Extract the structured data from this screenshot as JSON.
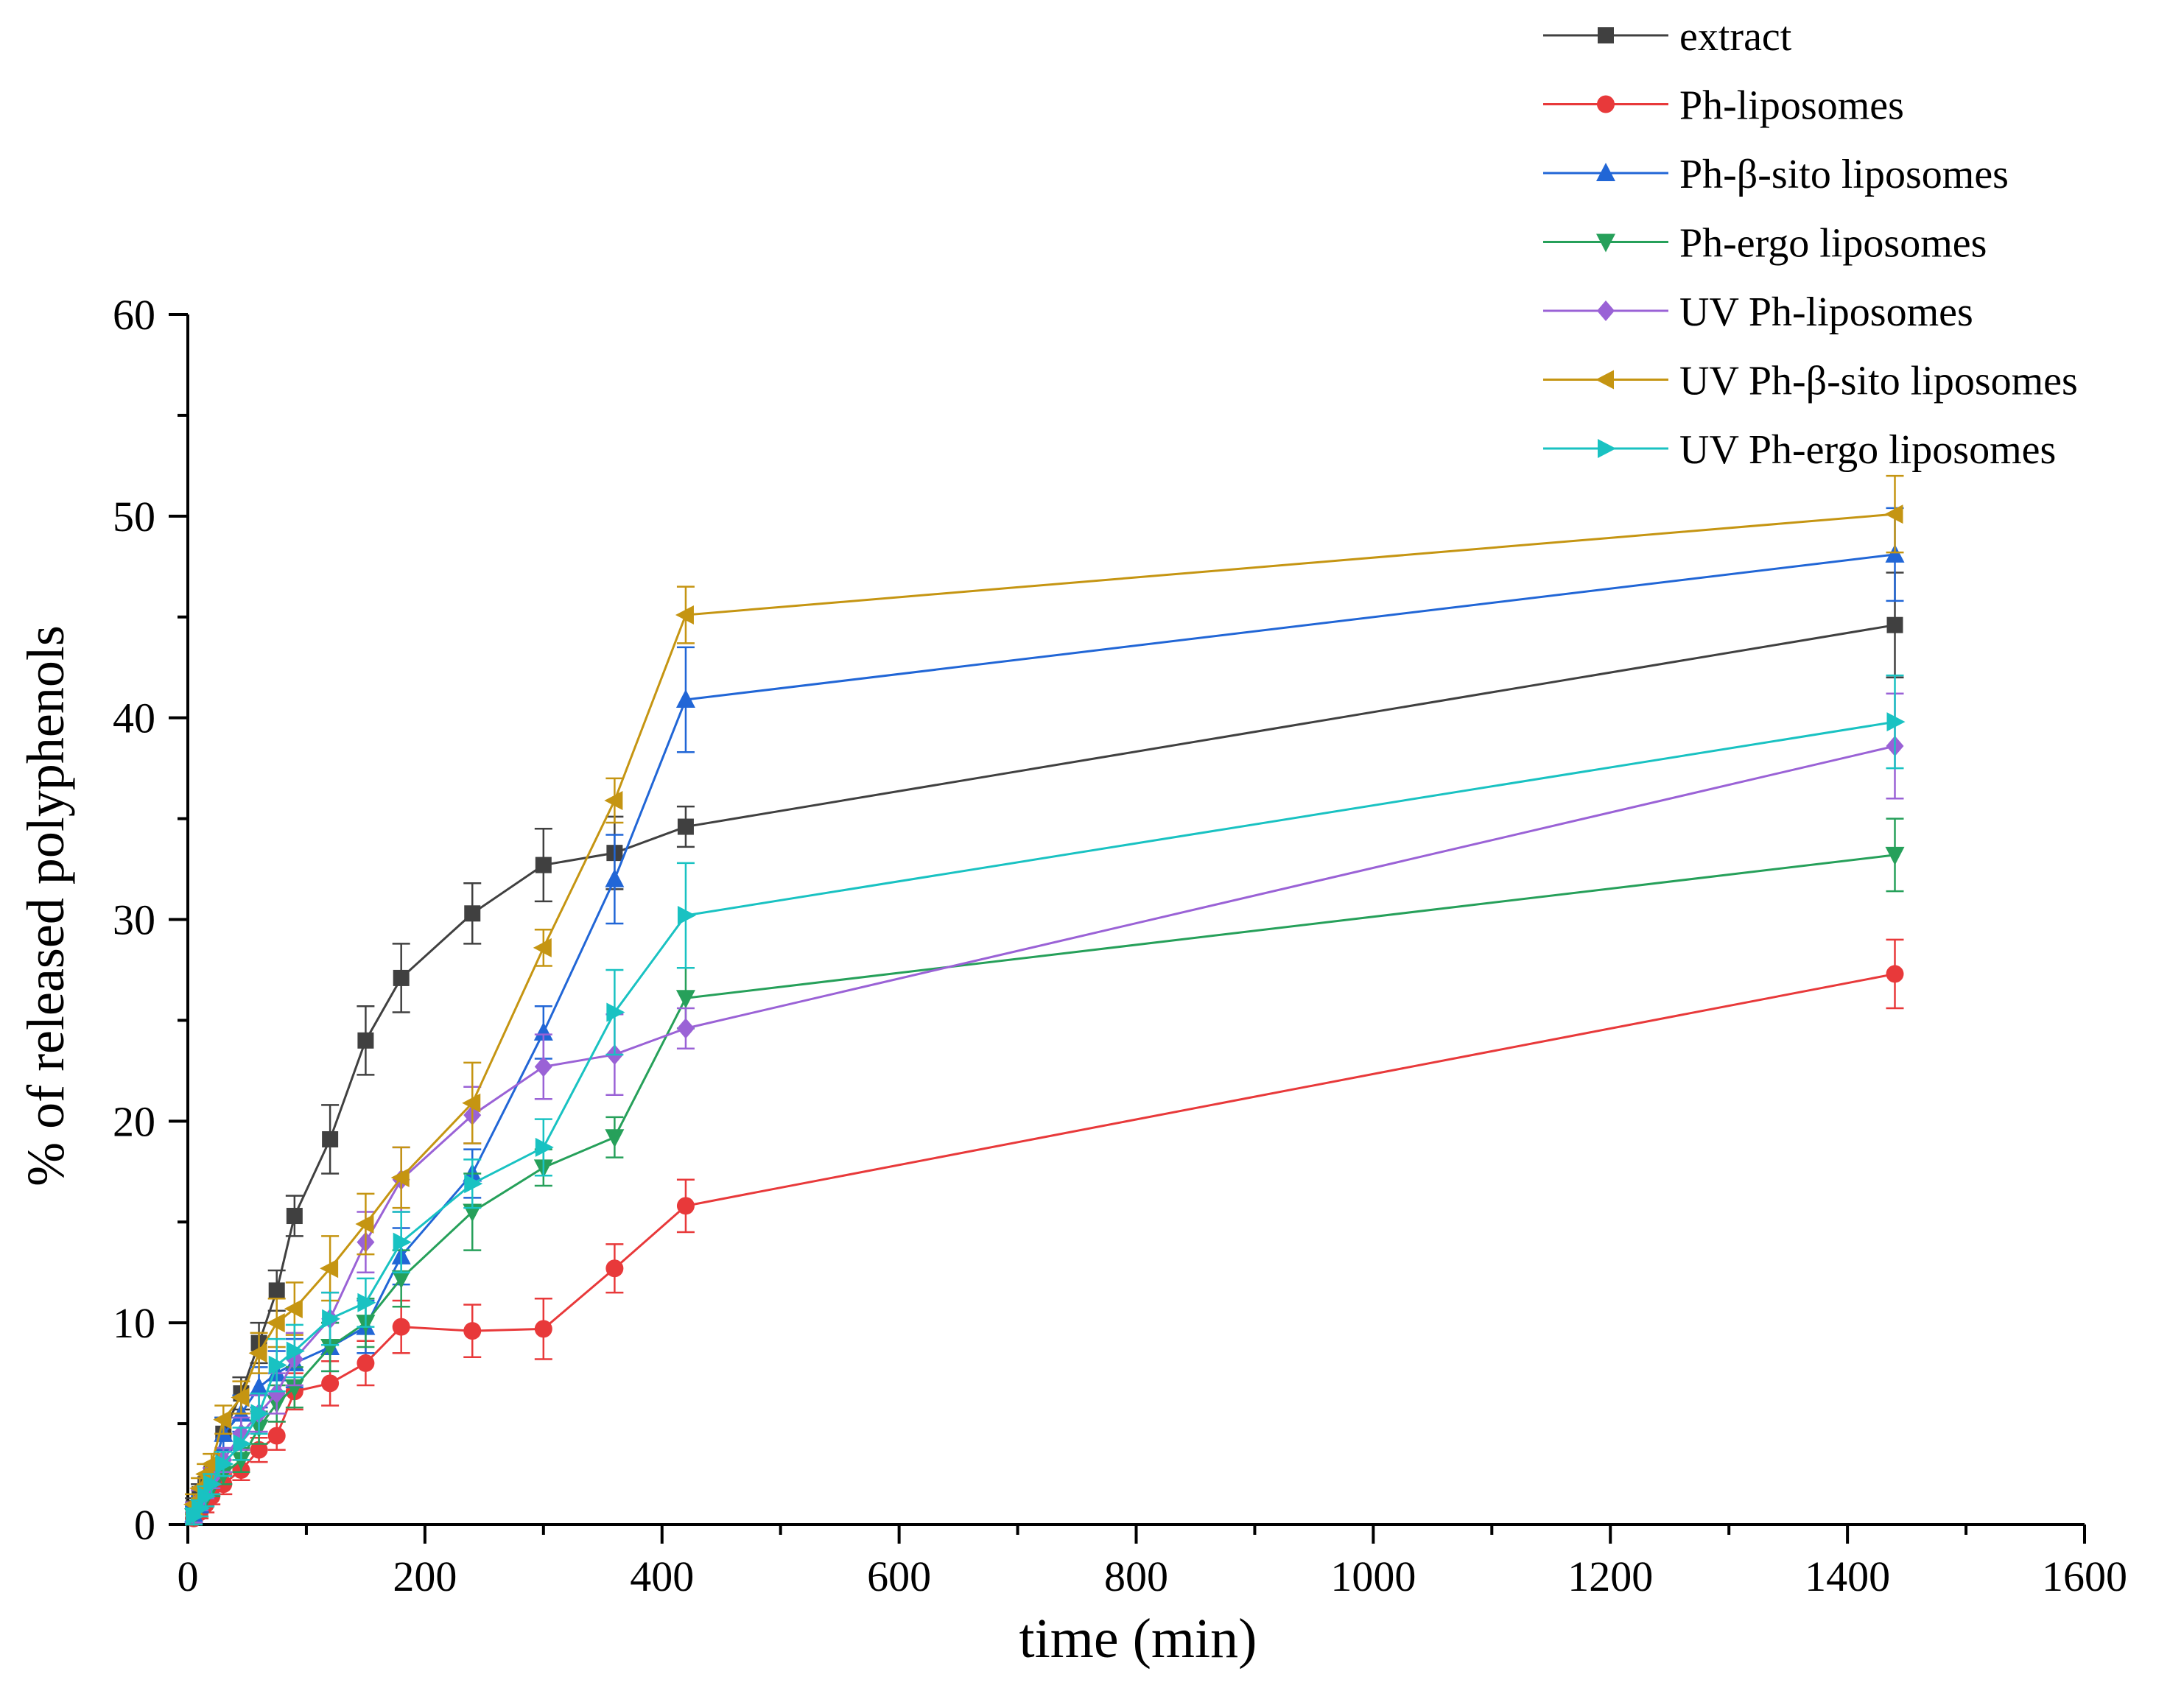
{
  "chart_data": {
    "type": "line",
    "title": "",
    "xlabel": "time (min)",
    "ylabel": "% of released polyphenols",
    "xlim": [
      0,
      1600
    ],
    "ylim": [
      0,
      60
    ],
    "xticks": [
      0,
      200,
      400,
      600,
      800,
      1000,
      1200,
      1400,
      1600
    ],
    "yticks": [
      0,
      10,
      20,
      30,
      40,
      50,
      60
    ],
    "grid": false,
    "legend_position": "top-right",
    "x": [
      5,
      10,
      15,
      20,
      30,
      45,
      60,
      75,
      90,
      120,
      150,
      180,
      240,
      300,
      360,
      420,
      1440
    ],
    "series": [
      {
        "name": "extract",
        "color": "#404040",
        "marker": "square",
        "values": [
          0.8,
          1.5,
          2.0,
          2.5,
          4.5,
          6.5,
          9.0,
          11.6,
          15.3,
          19.1,
          24.0,
          27.1,
          30.3,
          32.7,
          33.3,
          34.6,
          44.6
        ],
        "errors": [
          0.5,
          0.5,
          0.5,
          0.5,
          0.8,
          0.8,
          1.0,
          1.0,
          1.0,
          1.7,
          1.7,
          1.7,
          1.5,
          1.8,
          1.8,
          1.0,
          2.6
        ]
      },
      {
        "name": "Ph-liposomes",
        "color": "#e8393a",
        "marker": "circle",
        "values": [
          0.3,
          0.6,
          1.0,
          1.4,
          2.0,
          2.7,
          3.7,
          4.4,
          6.6,
          7.0,
          8.0,
          9.8,
          9.6,
          9.7,
          12.7,
          15.8,
          27.3
        ],
        "errors": [
          0.3,
          0.3,
          0.4,
          0.4,
          0.5,
          0.5,
          0.6,
          0.7,
          0.9,
          1.1,
          1.1,
          1.3,
          1.3,
          1.5,
          1.2,
          1.3,
          1.7
        ]
      },
      {
        "name": "Ph-β-sito liposomes",
        "color": "#2166d6",
        "marker": "triangle-up",
        "values": [
          0.5,
          1.0,
          1.8,
          2.5,
          4.5,
          5.5,
          6.8,
          7.5,
          8.0,
          8.8,
          9.8,
          13.3,
          17.4,
          24.4,
          32.0,
          40.9,
          48.1
        ],
        "errors": [
          0.4,
          0.4,
          0.5,
          0.5,
          0.8,
          0.9,
          1.0,
          1.1,
          1.2,
          1.2,
          1.3,
          1.4,
          1.2,
          1.3,
          2.2,
          2.6,
          2.3
        ]
      },
      {
        "name": "Ph-ergo liposomes",
        "color": "#26a05a",
        "marker": "triangle-down",
        "values": [
          0.4,
          0.8,
          1.3,
          1.8,
          2.5,
          3.2,
          4.8,
          6.0,
          6.8,
          8.8,
          10.0,
          12.2,
          15.5,
          17.7,
          19.2,
          26.1,
          33.2
        ],
        "errors": [
          0.4,
          0.4,
          0.4,
          0.4,
          0.5,
          0.6,
          0.8,
          0.9,
          1.0,
          1.2,
          1.2,
          1.4,
          1.9,
          0.9,
          1.0,
          1.5,
          1.8
        ]
      },
      {
        "name": "UV Ph-liposomes",
        "color": "#9a62d6",
        "marker": "diamond",
        "values": [
          0.6,
          1.2,
          1.8,
          2.3,
          3.2,
          4.5,
          5.5,
          6.5,
          8.2,
          10.2,
          14.0,
          17.1,
          20.3,
          22.7,
          23.3,
          24.6,
          38.6
        ],
        "errors": [
          0.5,
          0.5,
          0.5,
          0.5,
          0.6,
          0.8,
          0.9,
          1.0,
          1.3,
          1.3,
          1.5,
          1.6,
          1.4,
          1.6,
          2.0,
          1.0,
          2.6
        ]
      },
      {
        "name": "UV Ph-β-sito liposomes",
        "color": "#c59512",
        "marker": "triangle-left",
        "values": [
          1.0,
          1.8,
          2.5,
          3.0,
          5.2,
          6.3,
          8.5,
          10.0,
          10.7,
          12.7,
          14.9,
          17.2,
          20.9,
          28.6,
          35.9,
          45.1,
          50.1
        ],
        "errors": [
          0.5,
          0.5,
          0.5,
          0.5,
          0.7,
          0.8,
          1.0,
          1.2,
          1.3,
          1.6,
          1.5,
          1.5,
          2.0,
          0.9,
          1.1,
          1.4,
          1.9
        ]
      },
      {
        "name": "UV Ph-ergo liposomes",
        "color": "#19c2c2",
        "marker": "triangle-right",
        "values": [
          0.4,
          0.8,
          1.4,
          2.0,
          3.0,
          4.0,
          5.5,
          7.9,
          8.6,
          10.2,
          11.0,
          14.0,
          16.9,
          18.7,
          25.4,
          30.2,
          39.8
        ],
        "errors": [
          0.4,
          0.4,
          0.5,
          0.5,
          0.6,
          0.8,
          1.0,
          1.3,
          1.3,
          1.3,
          1.2,
          1.5,
          1.2,
          1.4,
          2.1,
          2.6,
          2.3
        ]
      }
    ]
  }
}
